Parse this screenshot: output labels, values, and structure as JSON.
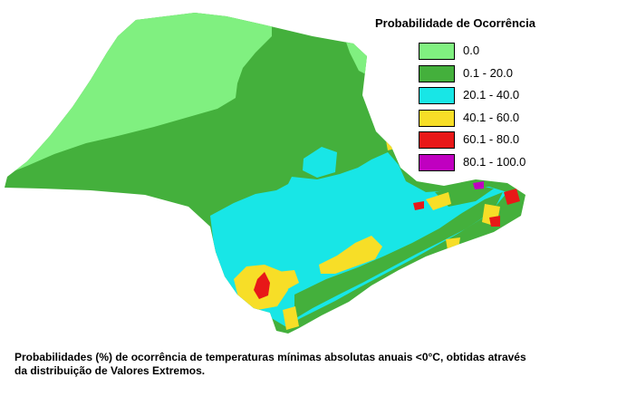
{
  "legend": {
    "title": "Probabilidade de Ocorrência",
    "items": [
      {
        "label": "0.0",
        "color": "#80f080"
      },
      {
        "label": "0.1 - 20.0",
        "color": "#44b03c"
      },
      {
        "label": "20.1 - 40.0",
        "color": "#18e6e6"
      },
      {
        "label": "40.1 - 60.0",
        "color": "#f7de27"
      },
      {
        "label": "60.1 - 80.0",
        "color": "#e81818"
      },
      {
        "label": "80.1 - 100.0",
        "color": "#c000c0"
      }
    ]
  },
  "caption": {
    "line1": "Probabilidades (%) de ocorrência de temperaturas mínimas absolutas anuais <0°C, obtidas através",
    "line2": "da distribuição de Valores Extremos."
  }
}
